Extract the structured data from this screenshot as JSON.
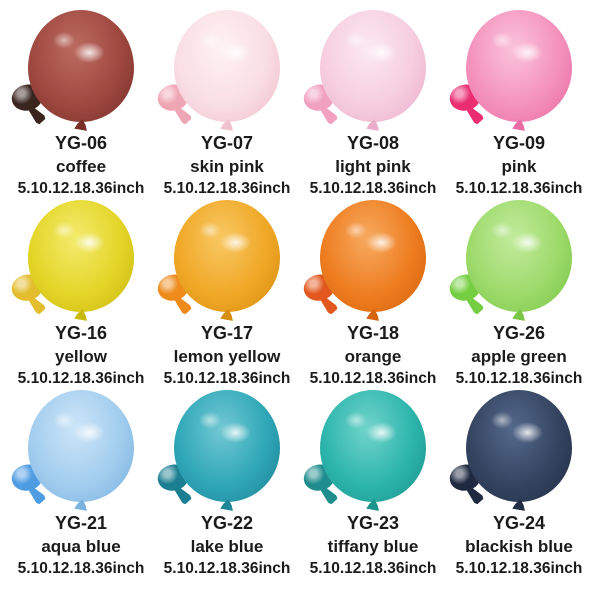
{
  "page": {
    "background": "#ffffff",
    "text_color": "#1b1b1b"
  },
  "products": [
    {
      "code": "YG-06",
      "name": "coffee",
      "sizes": "5.10.12.18.36inch",
      "colors": {
        "body": "#9E4840",
        "edge": "#7A3029",
        "highlight": "#BC6B60",
        "mini": "#3A241E"
      }
    },
    {
      "code": "YG-07",
      "name": "skin pink",
      "sizes": "5.10.12.18.36inch",
      "colors": {
        "body": "#F9DEE5",
        "edge": "#F0C0CC",
        "highlight": "#FEF2F4",
        "mini": "#EFA6B4"
      }
    },
    {
      "code": "YG-08",
      "name": "light pink",
      "sizes": "5.10.12.18.36inch",
      "colors": {
        "body": "#F6CEDF",
        "edge": "#EBAECA",
        "highlight": "#FBE9F1",
        "mini": "#F2A0C0"
      }
    },
    {
      "code": "YG-09",
      "name": "pink",
      "sizes": "5.10.12.18.36inch",
      "colors": {
        "body": "#F492BD",
        "edge": "#E96DA4",
        "highlight": "#FBC3DB",
        "mini": "#EA2E70"
      }
    },
    {
      "code": "YG-16",
      "name": "yellow",
      "sizes": "5.10.12.18.36inch",
      "colors": {
        "body": "#E4D527",
        "edge": "#C9B90F",
        "highlight": "#F3EB6E",
        "mini": "#E3BD2D"
      }
    },
    {
      "code": "YG-17",
      "name": "lemon yellow",
      "sizes": "5.10.12.18.36inch",
      "colors": {
        "body": "#F0A827",
        "edge": "#D98D10",
        "highlight": "#F8C863",
        "mini": "#EE8B1B"
      }
    },
    {
      "code": "YG-18",
      "name": "orange",
      "sizes": "5.10.12.18.36inch",
      "colors": {
        "body": "#EE7D20",
        "edge": "#D6640D",
        "highlight": "#F7AA60",
        "mini": "#E2571D"
      }
    },
    {
      "code": "YG-26",
      "name": "apple green",
      "sizes": "5.10.12.18.36inch",
      "colors": {
        "body": "#9DDA6B",
        "edge": "#7CC748",
        "highlight": "#C2EB9D",
        "mini": "#75CE41"
      }
    },
    {
      "code": "YG-21",
      "name": "aqua blue",
      "sizes": "5.10.12.18.36inch",
      "colors": {
        "body": "#A2CDEE",
        "edge": "#7BB2E0",
        "highlight": "#CDE5F8",
        "mini": "#4E9DE3"
      }
    },
    {
      "code": "YG-22",
      "name": "lake blue",
      "sizes": "5.10.12.18.36inch",
      "colors": {
        "body": "#2FA7B7",
        "edge": "#1E8597",
        "highlight": "#72C8D3",
        "mini": "#1C7E91"
      }
    },
    {
      "code": "YG-23",
      "name": "tiffany blue",
      "sizes": "5.10.12.18.36inch",
      "colors": {
        "body": "#2CB5AC",
        "edge": "#1C948C",
        "highlight": "#72D4CB",
        "mini": "#1F8D8D"
      }
    },
    {
      "code": "YG-24",
      "name": "blackish blue",
      "sizes": "5.10.12.18.36inch",
      "colors": {
        "body": "#344460",
        "edge": "#222E45",
        "highlight": "#55698C",
        "mini": "#1F2940"
      }
    }
  ]
}
